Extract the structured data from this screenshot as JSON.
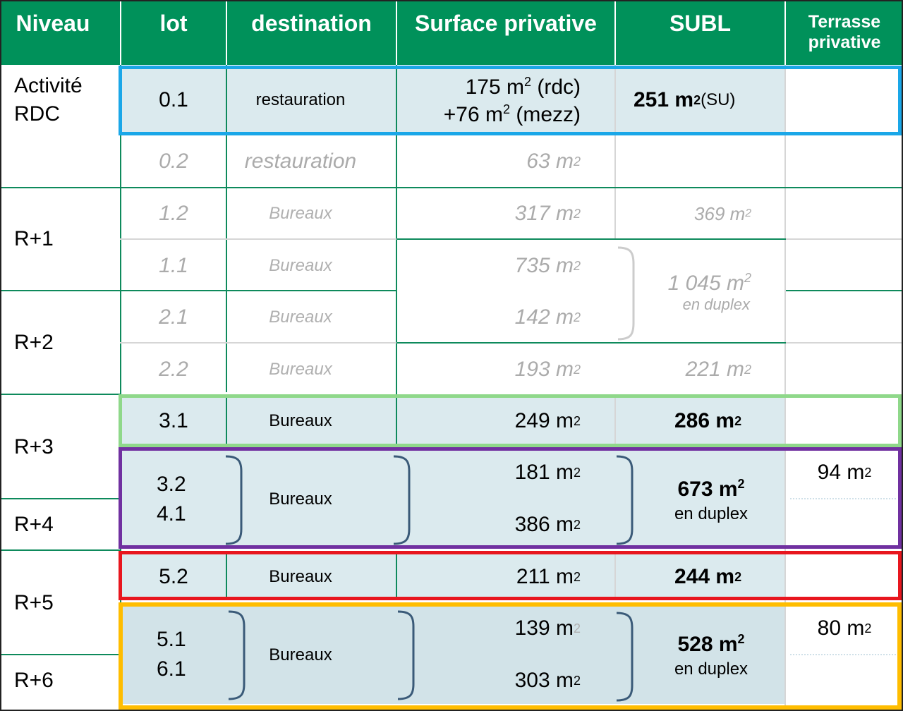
{
  "headers": {
    "niveau": "Niveau",
    "lot": "lot",
    "destination": "destination",
    "surface": "Surface privative",
    "subl": "SUBL",
    "terrasse_line1": "Terrasse",
    "terrasse_line2": "privative"
  },
  "levels": {
    "rdc_line1": "Activité",
    "rdc_line2": "RDC",
    "r1": "R+1",
    "r2": "R+2",
    "r3": "R+3",
    "r4": "R+4",
    "r5": "R+5",
    "r6": "R+6"
  },
  "rows": {
    "lot_0_1": {
      "lot": "0.1",
      "destination": "restauration",
      "surface_1": "175 m",
      "surface_1_note": " (rdc)",
      "surface_2": "+76 m",
      "surface_2_note": " (mezz)",
      "subl": "251 m",
      "subl_note": " (SU)"
    },
    "lot_0_2": {
      "lot": "0.2",
      "destination": "restauration",
      "surface": "63 m"
    },
    "lot_1_2": {
      "lot": "1.2",
      "destination": "Bureaux",
      "surface": "317 m",
      "subl": "369 m"
    },
    "lot_1_1": {
      "lot": "1.1",
      "destination": "Bureaux",
      "surface": "735 m"
    },
    "lot_2_1": {
      "lot": "2.1",
      "destination": "Bureaux",
      "surface": "142 m"
    },
    "group_1_1_2_1": {
      "subl": "1 045 m",
      "subl_note": "en duplex"
    },
    "lot_2_2": {
      "lot": "2.2",
      "destination": "Bureaux",
      "surface": "193 m",
      "subl": "221 m"
    },
    "lot_3_1": {
      "lot": "3.1",
      "destination": "Bureaux",
      "surface": "249 m",
      "subl": "286 m"
    },
    "group_3_2_4_1": {
      "lot_a": "3.2",
      "lot_b": "4.1",
      "destination": "Bureaux",
      "surface_a": "181 m",
      "surface_b": "386 m",
      "subl": "673 m",
      "subl_note": "en duplex",
      "terrasse": "94 m"
    },
    "lot_5_2": {
      "lot": "5.2",
      "destination": "Bureaux",
      "surface": "211 m",
      "subl": "244 m"
    },
    "group_5_1_6_1": {
      "lot_a": "5.1",
      "lot_b": "6.1",
      "destination": "Bureaux",
      "surface_a": "139 m",
      "surface_b": "303 m",
      "subl": "528 m",
      "subl_note": "en duplex",
      "terrasse": "80 m"
    }
  },
  "unit_superscript": "2",
  "colors": {
    "header_green": "#00915a",
    "row_fill": "#dbeaee",
    "box_blue": "#1aa7e8",
    "box_light_green": "#8fd88a",
    "box_purple": "#7030a0",
    "box_red": "#e8161e",
    "box_orange": "#ffbd00"
  }
}
